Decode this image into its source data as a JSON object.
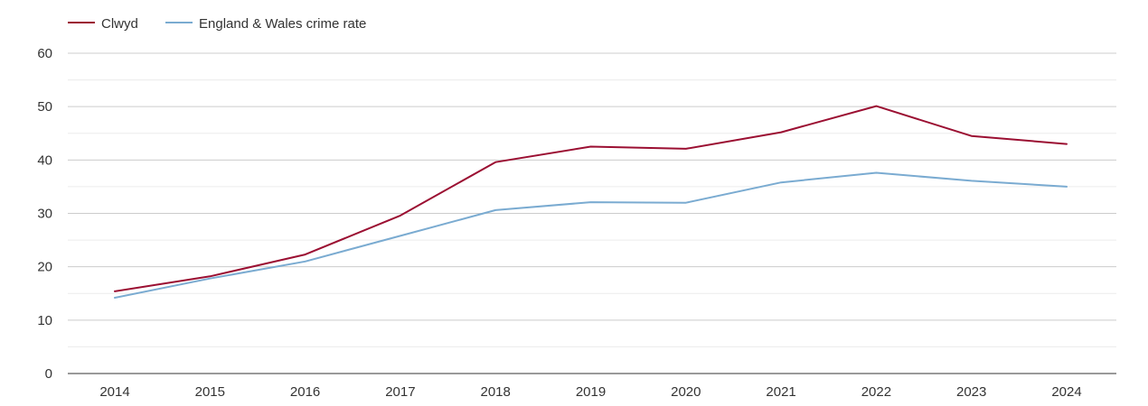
{
  "chart_data": {
    "type": "line",
    "title": "",
    "xlabel": "",
    "ylabel": "",
    "x": [
      "2014",
      "2015",
      "2016",
      "2017",
      "2018",
      "2019",
      "2020",
      "2021",
      "2022",
      "2023",
      "2024"
    ],
    "yticks": [
      "0",
      "10",
      "20",
      "30",
      "40",
      "50",
      "60"
    ],
    "ylim": [
      0,
      60
    ],
    "grid": true,
    "legend_position": "top-left",
    "series": [
      {
        "name": "Clwyd",
        "color": "#9b0f32",
        "values": [
          15.4,
          18.2,
          22.3,
          29.6,
          39.6,
          42.5,
          42.1,
          45.2,
          50.1,
          44.5,
          43.0
        ]
      },
      {
        "name": "England & Wales crime rate",
        "color": "#7aabd1",
        "values": [
          14.2,
          17.8,
          21.0,
          25.8,
          30.6,
          32.1,
          32.0,
          35.8,
          37.6,
          36.1,
          35.0
        ]
      }
    ]
  }
}
